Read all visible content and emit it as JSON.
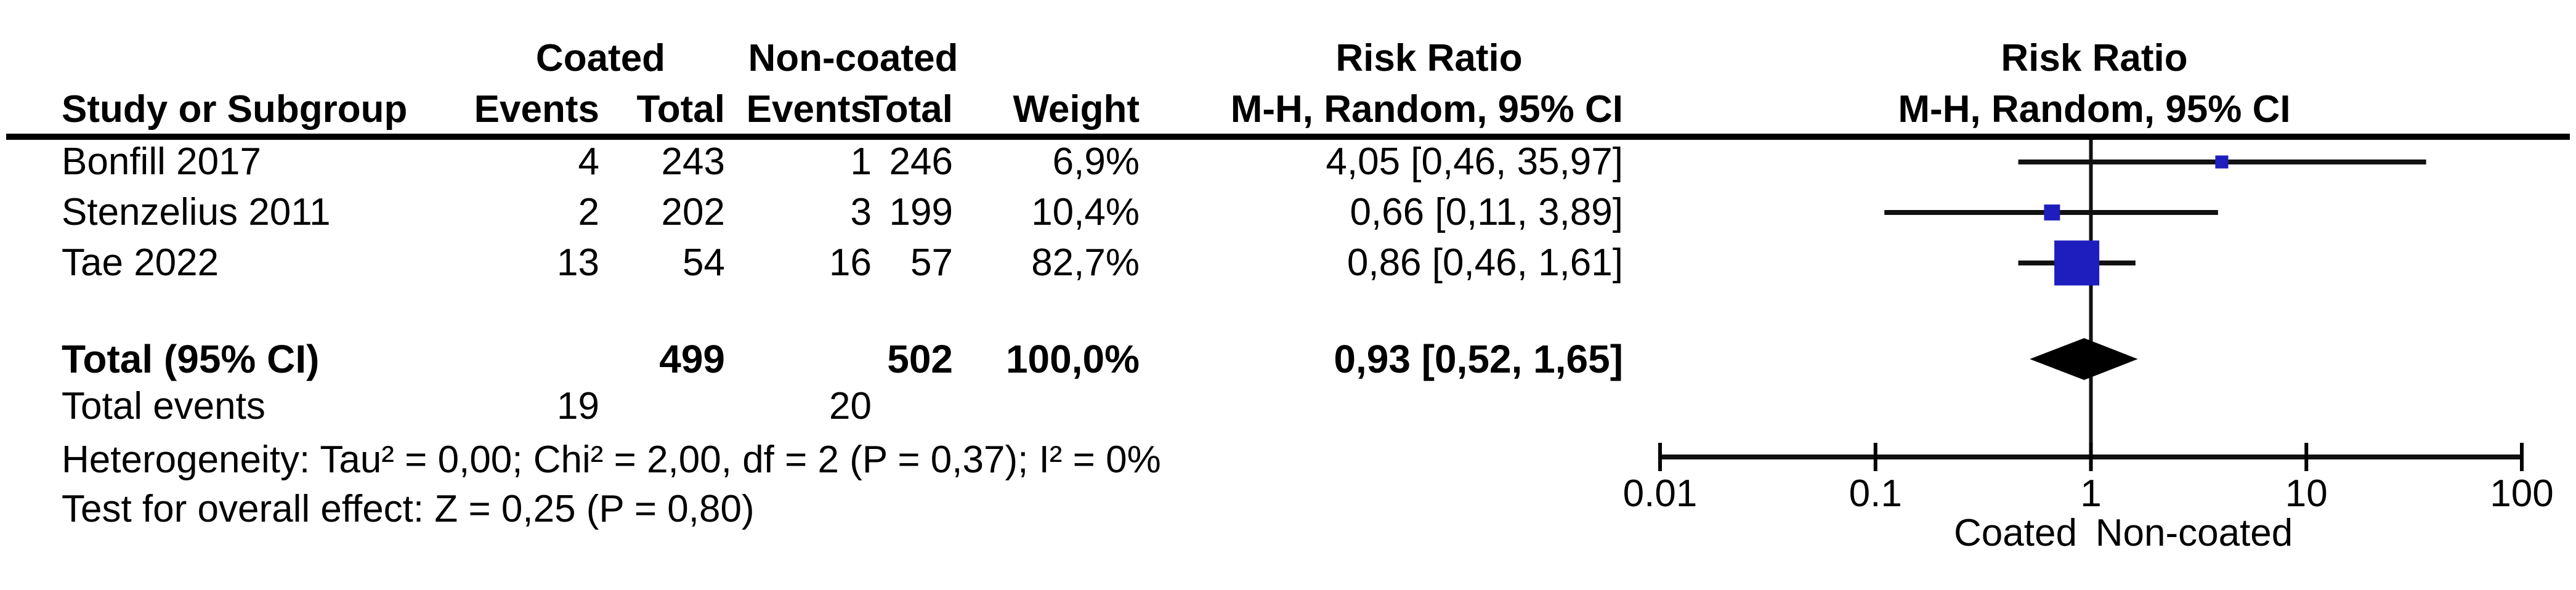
{
  "table": {
    "header": {
      "group_coated": "Coated",
      "group_noncoated": "Non-coated",
      "col_study": "Study or Subgroup",
      "col_events_coated": "Events",
      "col_total_coated": "Total",
      "col_events_noncoated": "Events",
      "col_total_noncoated": "Total",
      "col_weight": "Weight",
      "col_rr_title": "Risk Ratio",
      "col_rr_sub": "M-H, Random, 95% CI"
    },
    "rows": [
      {
        "study": "Bonfill 2017",
        "events_coated": "4",
        "total_coated": "243",
        "events_noncoated": "1",
        "total_noncoated": "246",
        "weight": "6,9%",
        "rr_ci": "4,05 [0,46, 35,97]"
      },
      {
        "study": "Stenzelius 2011",
        "events_coated": "2",
        "total_coated": "202",
        "events_noncoated": "3",
        "total_noncoated": "199",
        "weight": "10,4%",
        "rr_ci": "0,66 [0,11, 3,89]"
      },
      {
        "study": "Tae 2022",
        "events_coated": "13",
        "total_coated": "54",
        "events_noncoated": "16",
        "total_noncoated": "57",
        "weight": "82,7%",
        "rr_ci": "0,86 [0,46, 1,61]"
      }
    ],
    "total_row": {
      "label": "Total (95% CI)",
      "total_coated": "499",
      "total_noncoated": "502",
      "weight": "100,0%",
      "rr_ci": "0,93 [0,52, 1,65]"
    },
    "total_events_row": {
      "label": "Total events",
      "events_coated": "19",
      "events_noncoated": "20"
    },
    "heterogeneity": "Heterogeneity: Tau² = 0,00; Chi² = 2,00, df = 2 (P = 0,37); I² = 0%",
    "overall_effect": "Test for overall effect: Z = 0,25 (P = 0,80)"
  },
  "figure": {
    "rr_title": "Risk Ratio",
    "rr_sub": "M-H, Random, 95% CI",
    "favours_left": "Coated",
    "favours_right": "Non-coated"
  },
  "chart_data": {
    "type": "forest",
    "title": "Risk Ratio",
    "method": "M-H, Random, 95% CI",
    "x_axis": {
      "scale": "log",
      "min": 0.01,
      "max": 100,
      "ticks": [
        0.01,
        0.1,
        1,
        10,
        100
      ],
      "tick_labels": [
        "0.01",
        "0.1",
        "1",
        "10",
        "100"
      ]
    },
    "null_line": 1,
    "studies": [
      {
        "label": "Bonfill 2017",
        "rr": 4.05,
        "ci_low": 0.46,
        "ci_high": 35.97,
        "weight_pct": 6.9
      },
      {
        "label": "Stenzelius 2011",
        "rr": 0.66,
        "ci_low": 0.11,
        "ci_high": 3.89,
        "weight_pct": 10.4
      },
      {
        "label": "Tae 2022",
        "rr": 0.86,
        "ci_low": 0.46,
        "ci_high": 1.61,
        "weight_pct": 82.7
      }
    ],
    "total": {
      "label": "Total (95% CI)",
      "rr": 0.93,
      "ci_low": 0.52,
      "ci_high": 1.65,
      "weight_pct": 100.0
    },
    "heterogeneity": {
      "tau2": "0,00",
      "chi2": "2,00",
      "df": 2,
      "p": "0,37",
      "i2": "0%"
    },
    "overall_effect": {
      "z": "0,25",
      "p": "0,80"
    },
    "marker_color": "#1e1ebe",
    "diamond_color": "#000000",
    "line_color": "#111111",
    "favours_left": "Coated",
    "favours_right": "Non-coated"
  }
}
